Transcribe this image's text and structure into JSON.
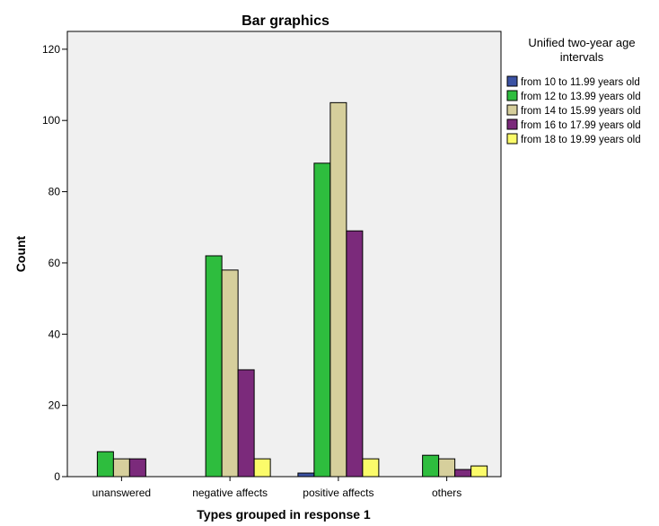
{
  "chart_data": {
    "type": "bar",
    "title": "Bar graphics",
    "xlabel": "Types grouped in response 1",
    "ylabel": "Count",
    "ylim": [
      0,
      125
    ],
    "yticks": [
      0,
      20,
      40,
      60,
      80,
      100,
      120
    ],
    "categories": [
      "unanswered",
      "negative affects",
      "positive affects",
      "others"
    ],
    "legend": {
      "title_lines": [
        "Unified two-year age",
        "intervals"
      ],
      "placement": "right"
    },
    "series": [
      {
        "name": "from 10 to 11.99 years old",
        "color": "#3b52a3",
        "values": [
          0,
          0,
          1,
          0
        ]
      },
      {
        "name": "from 12 to 13.99 years old",
        "color": "#2ebd3e",
        "values": [
          7,
          62,
          88,
          6
        ]
      },
      {
        "name": "from 14 to 15.99 years old",
        "color": "#d6cf9c",
        "values": [
          5,
          58,
          105,
          5
        ]
      },
      {
        "name": "from 16 to 17.99 years old",
        "color": "#7b2a7b",
        "values": [
          5,
          30,
          69,
          2
        ]
      },
      {
        "name": "from 18 to 19.99 years old",
        "color": "#fbfb6a",
        "values": [
          0,
          5,
          5,
          3
        ]
      }
    ],
    "plot_background": "#f0f0f0",
    "grid": false
  }
}
